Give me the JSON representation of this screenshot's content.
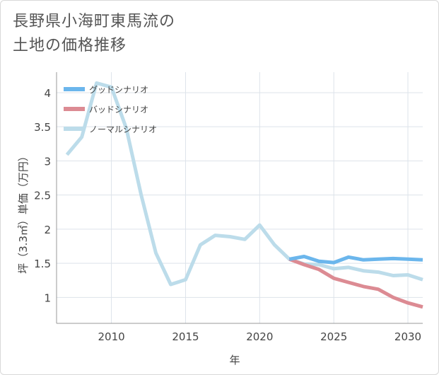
{
  "title_line1": "長野県小海町東馬流の",
  "title_line2": "土地の価格推移",
  "chart_data": {
    "type": "line",
    "xlabel": "年",
    "ylabel": "坪（3.3㎡）単価（万円）",
    "xlim": [
      2006.3,
      2031
    ],
    "ylim": [
      0.62,
      4.3
    ],
    "x_ticks": [
      2010,
      2015,
      2020,
      2025,
      2030
    ],
    "y_ticks": [
      1,
      1.5,
      2,
      2.5,
      3,
      3.5,
      4
    ],
    "grid": true,
    "legend_position": "top-left",
    "series": [
      {
        "name": "グッドシナリオ",
        "color": "#6bb6ec",
        "x": [
          2022,
          2023,
          2024,
          2025,
          2026,
          2027,
          2028,
          2029,
          2030,
          2031
        ],
        "y": [
          1.56,
          1.6,
          1.53,
          1.51,
          1.59,
          1.55,
          1.56,
          1.57,
          1.56,
          1.55
        ]
      },
      {
        "name": "バッドシナリオ",
        "color": "#dc8b93",
        "x": [
          2022,
          2023,
          2024,
          2025,
          2026,
          2027,
          2028,
          2029,
          2030,
          2031
        ],
        "y": [
          1.56,
          1.48,
          1.41,
          1.28,
          1.22,
          1.16,
          1.12,
          1.0,
          0.92,
          0.86
        ]
      },
      {
        "name": "ノーマルシナリオ",
        "color": "#bcdcea",
        "x": [
          2007,
          2008,
          2009,
          2010,
          2011,
          2012,
          2013,
          2014,
          2015,
          2016,
          2017,
          2018,
          2019,
          2020,
          2021,
          2022,
          2023,
          2024,
          2025,
          2026,
          2027,
          2028,
          2029,
          2030,
          2031
        ],
        "y": [
          3.09,
          3.35,
          4.14,
          4.08,
          3.48,
          2.51,
          1.65,
          1.19,
          1.26,
          1.77,
          1.91,
          1.89,
          1.85,
          2.06,
          1.77,
          1.56,
          1.49,
          1.48,
          1.42,
          1.44,
          1.39,
          1.37,
          1.32,
          1.33,
          1.26
        ]
      }
    ]
  }
}
